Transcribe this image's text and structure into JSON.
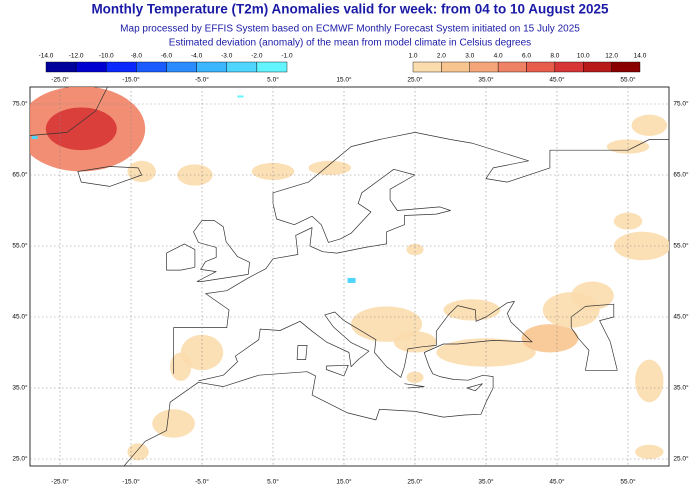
{
  "header": {
    "title": "Monthly Temperature (T2m) Anomalies valid for week: from 04 to 10 August 2025",
    "subtitle": "Map processed by EFFIS System based on ECMWF Monthly Forecast System initiated on 15 July 2025",
    "note": "Estimated deviation (anomaly) of the mean from model climate in Celsius degrees"
  },
  "legend": {
    "negative": {
      "labels": [
        "-14.0",
        "-12.0",
        "-10.0",
        "-8.0",
        "-6.0",
        "-4.0",
        "-3.0",
        "-2.0",
        "-1.0"
      ],
      "colors": [
        "#00009a",
        "#0000d0",
        "#0a28ff",
        "#1a5cff",
        "#2c8cff",
        "#3cb6ff",
        "#4ed6ff",
        "#62f4ff"
      ]
    },
    "positive": {
      "labels": [
        "1.0",
        "2.0",
        "3.0",
        "4.0",
        "6.0",
        "8.0",
        "10.0",
        "12.0",
        "14.0"
      ],
      "colors": [
        "#fbdcad",
        "#f8c590",
        "#f4a67a",
        "#ef8264",
        "#e85c4c",
        "#d83636",
        "#b81a1a",
        "#8a0000"
      ]
    }
  },
  "map": {
    "top_lon_labels": [
      "-25.0°",
      "-15.0°",
      "-5.0°",
      "5.0°",
      "15.0°",
      "25.0°",
      "35.0°",
      "45.0°",
      "55.0°"
    ],
    "bottom_lon_labels": [
      "-25.0°",
      "-15.0°",
      "-5.0°",
      "5.0°",
      "15.0°",
      "25.0°",
      "35.0°",
      "45.0°",
      "55.0°"
    ],
    "left_lat_labels": [
      "75.0°",
      "65.0°",
      "55.0°",
      "45.0°",
      "35.0°",
      "25.0°"
    ],
    "right_lat_labels": [
      "75.0°",
      "65.0°",
      "55.0°",
      "45.0°",
      "35.0°",
      "25.0°"
    ]
  }
}
